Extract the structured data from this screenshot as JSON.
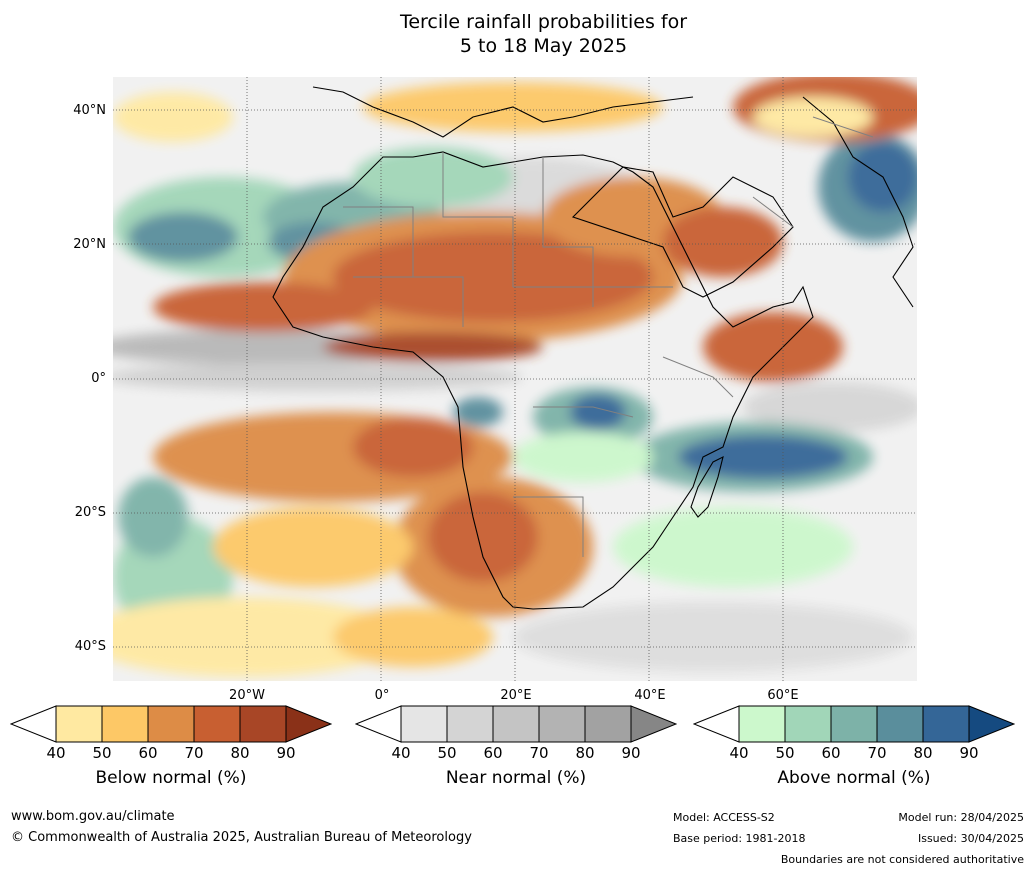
{
  "title": {
    "line1": "Tercile rainfall probabilities for",
    "line2": "5 to 18 May 2025"
  },
  "map": {
    "lat_labels": [
      "40°N",
      "20°N",
      "0°",
      "20°S",
      "40°S"
    ],
    "lon_labels": [
      "20°W",
      "0°",
      "20°E",
      "40°E",
      "60°E"
    ]
  },
  "legend": {
    "below": {
      "caption": "Below normal (%)",
      "ticks": [
        "40",
        "50",
        "60",
        "70",
        "80",
        "90"
      ],
      "colors": [
        "#ffffff",
        "#ffe9a1",
        "#fdc866",
        "#dd8c46",
        "#c85f31",
        "#a84626",
        "#8a3118"
      ]
    },
    "near": {
      "caption": "Near normal (%)",
      "ticks": [
        "40",
        "50",
        "60",
        "70",
        "80",
        "90"
      ],
      "colors": [
        "#ffffff",
        "#e5e5e5",
        "#d4d4d4",
        "#c4c4c4",
        "#b3b3b3",
        "#a2a2a2",
        "#868686"
      ]
    },
    "above": {
      "caption": "Above normal (%)",
      "ticks": [
        "40",
        "50",
        "60",
        "70",
        "80",
        "90"
      ],
      "colors": [
        "#ffffff",
        "#ccf8cc",
        "#a1d6b8",
        "#7db2a8",
        "#5a8e9c",
        "#346697",
        "#154a80"
      ]
    }
  },
  "footer": {
    "url": "www.bom.gov.au/climate",
    "copyright": "© Commonwealth of Australia 2025, Australian Bureau of Meteorology",
    "model": "Model: ACCESS-S2",
    "base_period": "Base period: 1981-2018",
    "model_run": "Model run: 28/04/2025",
    "issued": "Issued: 30/04/2025",
    "disclaimer": "Boundaries are not considered authoritative"
  }
}
